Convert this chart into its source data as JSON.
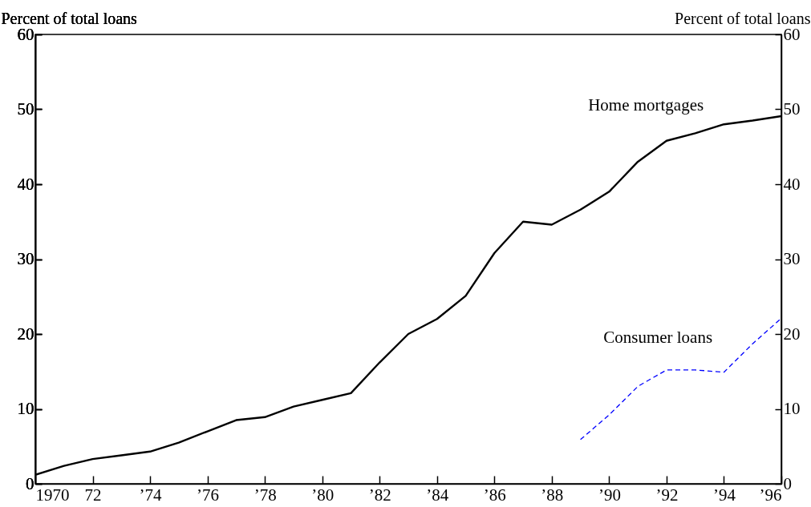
{
  "chart_data": {
    "type": "line",
    "ylabel": "Percent of total loans",
    "y2label": "Percent of total loans",
    "x": [
      1970,
      1971,
      1972,
      1973,
      1974,
      1975,
      1976,
      1977,
      1978,
      1979,
      1980,
      1981,
      1982,
      1983,
      1984,
      1985,
      1986,
      1987,
      1988,
      1989,
      1990,
      1991,
      1992,
      1993,
      1994,
      1995,
      1996
    ],
    "series": [
      {
        "name": "Home mortgages",
        "color": "#000000",
        "line_style": "solid",
        "values": [
          1.2,
          2.4,
          3.3,
          3.8,
          4.3,
          5.5,
          7.0,
          8.5,
          8.9,
          10.3,
          11.2,
          12.1,
          16.2,
          20.0,
          22.0,
          25.1,
          30.8,
          35.0,
          34.6,
          36.6,
          39.0,
          43.0,
          45.8,
          46.8,
          48.0,
          48.5,
          49.1
        ]
      },
      {
        "name": "Consumer loans",
        "color": "#0000ff",
        "line_style": "dashed",
        "x": [
          1989,
          1990,
          1991,
          1992,
          1993,
          1994,
          1995,
          1996
        ],
        "values": [
          5.9,
          9.2,
          13.0,
          15.2,
          15.2,
          14.9,
          18.7,
          22.1
        ]
      }
    ],
    "xlim": [
      1970,
      1996
    ],
    "xticks": [
      {
        "value": 1970,
        "label": "1970"
      },
      {
        "value": 1972,
        "label": "72"
      },
      {
        "value": 1974,
        "label": "’74"
      },
      {
        "value": 1976,
        "label": "’76"
      },
      {
        "value": 1978,
        "label": "’78"
      },
      {
        "value": 1980,
        "label": "’80"
      },
      {
        "value": 1982,
        "label": "’82"
      },
      {
        "value": 1984,
        "label": "’84"
      },
      {
        "value": 1986,
        "label": "’86"
      },
      {
        "value": 1988,
        "label": "’88"
      },
      {
        "value": 1990,
        "label": "’90"
      },
      {
        "value": 1992,
        "label": "’92"
      },
      {
        "value": 1994,
        "label": "’94"
      },
      {
        "value": 1996,
        "label": "’96"
      }
    ],
    "ylim": [
      0,
      60
    ],
    "yticks": [
      0,
      10,
      20,
      30,
      40,
      50,
      60
    ],
    "y2lim": [
      0,
      60
    ],
    "y2ticks": [
      0,
      10,
      20,
      30,
      40,
      50,
      60
    ],
    "grid": false
  }
}
